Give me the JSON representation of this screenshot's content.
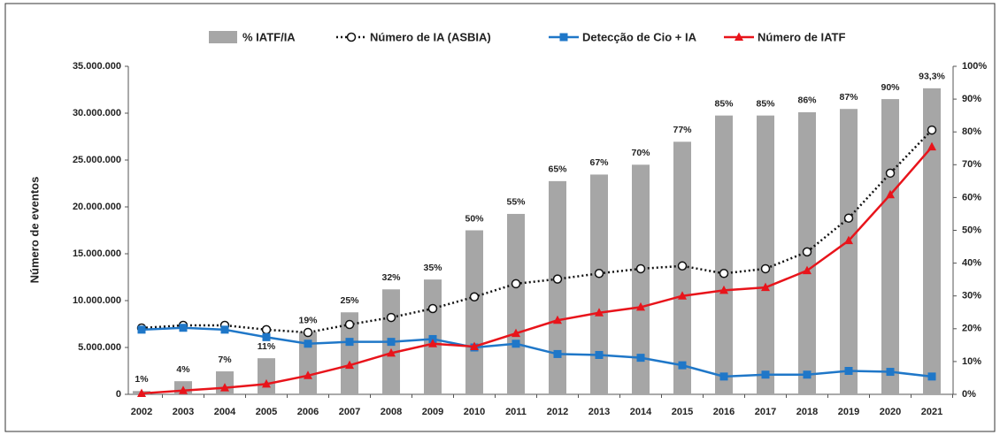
{
  "chart_data": {
    "type": "combo",
    "y_label": "Número de eventos",
    "categories": [
      "2002",
      "2003",
      "2004",
      "2005",
      "2006",
      "2007",
      "2008",
      "2009",
      "2010",
      "2011",
      "2012",
      "2013",
      "2014",
      "2015",
      "2016",
      "2017",
      "2018",
      "2019",
      "2020",
      "2021"
    ],
    "ylim": [
      0,
      35000000
    ],
    "yticks": [
      0,
      {
        "value": 5000000,
        "label": "5.000.000"
      },
      {
        "value": 10000000,
        "label": "10.000.000"
      },
      {
        "value": 15000000,
        "label": "15.000.000"
      },
      {
        "value": 20000000,
        "label": "20.000.000"
      },
      {
        "value": 25000000,
        "label": "25.000.000"
      },
      {
        "value": 30000000,
        "label": "30.000.000"
      },
      {
        "value": 35000000,
        "label": "35.000.000"
      }
    ],
    "y2lim": [
      0,
      100
    ],
    "y2ticks": [
      {
        "value": 0,
        "label": "0%"
      },
      {
        "value": 10,
        "label": "10%"
      },
      {
        "value": 20,
        "label": "20%"
      },
      {
        "value": 30,
        "label": "30%"
      },
      {
        "value": 40,
        "label": "40%"
      },
      {
        "value": 50,
        "label": "50%"
      },
      {
        "value": 60,
        "label": "60%"
      },
      {
        "value": 70,
        "label": "70%"
      },
      {
        "value": 80,
        "label": "80%"
      },
      {
        "value": 90,
        "label": "90%"
      },
      {
        "value": 100,
        "label": "100%"
      }
    ],
    "series": [
      {
        "name": "% IATF/IA",
        "type": "bar",
        "axis": "y2",
        "color": "#a6a6a6",
        "values": [
          1,
          4,
          7,
          11,
          19,
          25,
          32,
          35,
          50,
          55,
          65,
          67,
          70,
          77,
          85,
          85,
          86,
          87,
          90,
          93.3
        ],
        "value_labels": [
          "1%",
          "4%",
          "7%",
          "11%",
          "19%",
          "25%",
          "32%",
          "35%",
          "50%",
          "55%",
          "65%",
          "67%",
          "70%",
          "77%",
          "85%",
          "85%",
          "86%",
          "87%",
          "90%",
          "93,3%"
        ]
      },
      {
        "name": "Número de IA (ASBIA)",
        "type": "line",
        "marker": "circle",
        "dashed": true,
        "color": "#111111",
        "values": [
          7080000,
          7360000,
          7360000,
          6900000,
          6600000,
          7450000,
          8200000,
          9150000,
          10400000,
          11800000,
          12300000,
          12900000,
          13400000,
          13700000,
          12900000,
          13400000,
          15200000,
          18800000,
          23600000,
          28200000
        ]
      },
      {
        "name": "Detecção de Cio + IA",
        "type": "line",
        "marker": "square",
        "color": "#1f77c8",
        "values": [
          6900000,
          7100000,
          6900000,
          6100000,
          5400000,
          5600000,
          5600000,
          5900000,
          5000000,
          5400000,
          4300000,
          4200000,
          3900000,
          3100000,
          1900000,
          2100000,
          2100000,
          2500000,
          2400000,
          1900000
        ]
      },
      {
        "name": "Número de IATF",
        "type": "line",
        "marker": "triangle",
        "color": "#e8141b",
        "values": [
          100000,
          400000,
          700000,
          1100000,
          2000000,
          3100000,
          4400000,
          5400000,
          5100000,
          6500000,
          7900000,
          8700000,
          9300000,
          10500000,
          11100000,
          11400000,
          13200000,
          16400000,
          21300000,
          26400000
        ]
      }
    ]
  }
}
